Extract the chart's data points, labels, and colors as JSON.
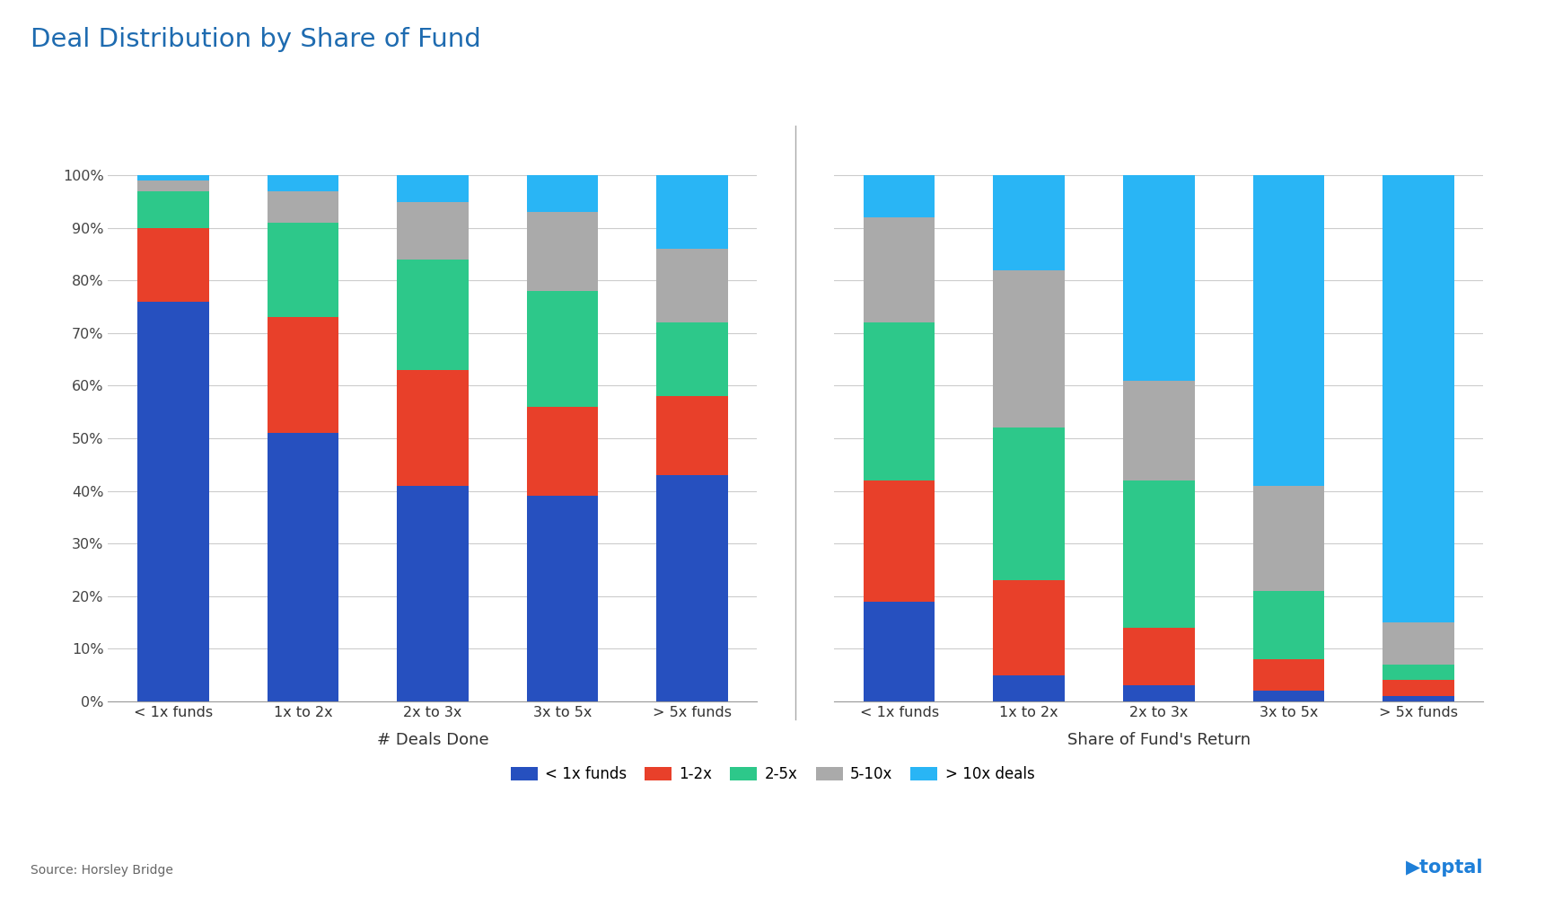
{
  "title": "Deal Distribution by Share of Fund",
  "title_color": "#1E6BB0",
  "groups": [
    {
      "label": "# Deals Done",
      "categories": [
        "< 1x funds",
        "1x to 2x",
        "2x to 3x",
        "3x to 5x",
        "> 5x funds"
      ],
      "data": {
        "lt1x": [
          76,
          51,
          41,
          39,
          43
        ],
        "1_2x": [
          14,
          22,
          22,
          17,
          15
        ],
        "2_5x": [
          7,
          18,
          21,
          22,
          14
        ],
        "5_10x": [
          2,
          6,
          11,
          15,
          14
        ],
        "gt10x": [
          1,
          3,
          5,
          7,
          14
        ]
      }
    },
    {
      "label": "Share of Fund's Return",
      "categories": [
        "< 1x funds",
        "1x to 2x",
        "2x to 3x",
        "3x to 5x",
        "> 5x funds"
      ],
      "data": {
        "lt1x": [
          19,
          5,
          3,
          2,
          1
        ],
        "1_2x": [
          23,
          18,
          11,
          6,
          3
        ],
        "2_5x": [
          30,
          29,
          28,
          13,
          3
        ],
        "5_10x": [
          20,
          30,
          19,
          20,
          8
        ],
        "gt10x": [
          8,
          18,
          39,
          59,
          85
        ]
      }
    }
  ],
  "colors": {
    "lt1x": "#2650BF",
    "1_2x": "#E8402A",
    "2_5x": "#2DC88A",
    "5_10x": "#AAAAAA",
    "gt10x": "#29B5F5"
  },
  "legend_labels": [
    "< 1x funds",
    "1-2x",
    "2-5x",
    "5-10x",
    "> 10x deals"
  ],
  "yticks": [
    0,
    10,
    20,
    30,
    40,
    50,
    60,
    70,
    80,
    90,
    100
  ],
  "ytick_labels": [
    "0%",
    "10%",
    "20%",
    "30%",
    "40%",
    "50%",
    "60%",
    "70%",
    "80%",
    "90%",
    "100%"
  ],
  "source_text": "Source: Horsley Bridge",
  "background_color": "#FFFFFF",
  "toptal_color": "#1E7FD8"
}
